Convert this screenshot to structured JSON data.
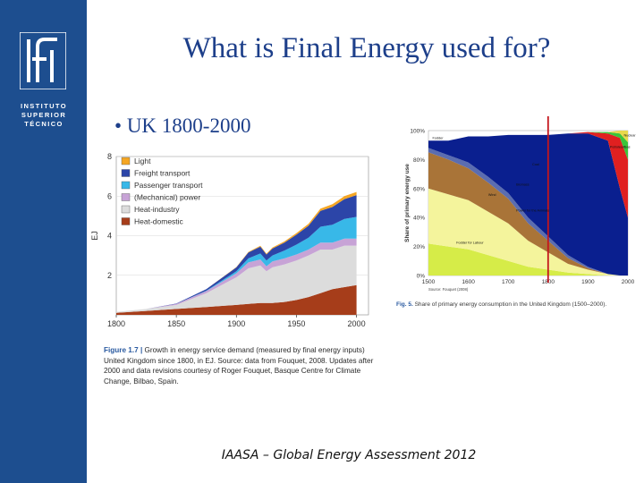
{
  "slide": {
    "title": "What is Final Energy used for?",
    "bullet": "UK 1800-2000",
    "footer": "IAASA – Global Energy Assessment 2012"
  },
  "logo": {
    "lines": [
      "INSTITUTO",
      "SUPERIOR",
      "TÉCNICO"
    ]
  },
  "colors": {
    "sidebar": "#1d4e8f",
    "title": "#1d3f8a",
    "light": "#f5a623",
    "freight": "#2c45a8",
    "passenger": "#38b8e8",
    "mechanical": "#c7a3d6",
    "heat_industry": "#dcdcdc",
    "heat_domestic": "#a63d1a",
    "red_line": "#c4161c"
  },
  "chart_data": [
    {
      "type": "area",
      "stacked": true,
      "ylabel": "EJ",
      "x": [
        1800,
        1825,
        1850,
        1875,
        1900,
        1910,
        1920,
        1925,
        1930,
        1940,
        1950,
        1960,
        1970,
        1980,
        1990,
        2000
      ],
      "xticks": [
        "1800",
        "1850",
        "1900",
        "1950",
        "2000"
      ],
      "yticks": [
        "2",
        "4",
        "6",
        "8"
      ],
      "ylim": [
        0,
        8
      ],
      "legend": {
        "placement": "top-left"
      },
      "series": [
        {
          "name": "Heat-domestic",
          "color": "#a63d1a",
          "values": [
            0.1,
            0.2,
            0.3,
            0.4,
            0.5,
            0.55,
            0.6,
            0.6,
            0.6,
            0.65,
            0.75,
            0.9,
            1.1,
            1.3,
            1.4,
            1.5
          ]
        },
        {
          "name": "Heat-industry",
          "color": "#dcdcdc",
          "values": [
            0.05,
            0.1,
            0.2,
            0.7,
            1.4,
            1.8,
            1.9,
            1.6,
            1.8,
            1.9,
            2.0,
            2.1,
            2.2,
            2.0,
            2.1,
            2.0
          ]
        },
        {
          "name": "(Mechanical) power",
          "color": "#c7a3d6",
          "values": [
            0.0,
            0.0,
            0.05,
            0.1,
            0.2,
            0.3,
            0.3,
            0.25,
            0.3,
            0.3,
            0.3,
            0.3,
            0.35,
            0.35,
            0.35,
            0.35
          ]
        },
        {
          "name": "Passenger transport",
          "color": "#38b8e8",
          "values": [
            0.0,
            0.0,
            0.0,
            0.02,
            0.1,
            0.2,
            0.3,
            0.3,
            0.3,
            0.4,
            0.5,
            0.6,
            0.8,
            0.9,
            1.0,
            1.1
          ]
        },
        {
          "name": "Freight transport",
          "color": "#2c45a8",
          "values": [
            0.0,
            0.0,
            0.02,
            0.08,
            0.2,
            0.3,
            0.35,
            0.3,
            0.35,
            0.4,
            0.5,
            0.6,
            0.8,
            0.9,
            1.0,
            1.1
          ]
        },
        {
          "name": "Light",
          "color": "#f5a623",
          "values": [
            0.0,
            0.0,
            0.0,
            0.0,
            0.02,
            0.03,
            0.04,
            0.04,
            0.05,
            0.06,
            0.08,
            0.1,
            0.12,
            0.14,
            0.15,
            0.16
          ]
        }
      ],
      "caption": {
        "label": "Figure 1.7 |",
        "text": "Growth in energy service demand (measured by final energy inputs) United Kingdom since 1800, in EJ. Source: data from Fouquet, 2008. Updates after 2000 and data revisions courtesy of Roger Fouquet, Basque Centre for Climate Change, Bilbao, Spain."
      }
    },
    {
      "type": "area",
      "stacked": true,
      "ylabel": "Share of primary energy use",
      "x": [
        1500,
        1550,
        1600,
        1650,
        1700,
        1750,
        1800,
        1850,
        1900,
        1950,
        1980,
        2000
      ],
      "xticks": [
        "1500",
        "1600",
        "1700",
        "1800",
        "1900",
        "2000"
      ],
      "yticks": [
        "0%",
        "20%",
        "40%",
        "60%",
        "80%",
        "100%"
      ],
      "ylim": [
        0,
        100
      ],
      "marker_year": 1800,
      "series": [
        {
          "name": "Fodder for Labour",
          "color": "#d6ec48",
          "values": [
            22,
            20,
            18,
            14,
            10,
            6,
            4,
            2,
            1,
            0,
            0,
            0
          ]
        },
        {
          "name": "Power for the Animals",
          "color": "#f4f49c",
          "values": [
            38,
            36,
            34,
            30,
            26,
            18,
            12,
            6,
            3,
            1,
            0,
            0
          ]
        },
        {
          "name": "Biomass",
          "color": "#a97438",
          "values": [
            25,
            24,
            22,
            20,
            17,
            12,
            8,
            4,
            1,
            0,
            0,
            0
          ]
        },
        {
          "name": "Wind",
          "color": "#5b6db0",
          "values": [
            3,
            3,
            4,
            4,
            4,
            4,
            3,
            2,
            1,
            0,
            0,
            0
          ]
        },
        {
          "name": "Coal",
          "color": "#0a1f8f",
          "values": [
            5,
            10,
            18,
            28,
            40,
            57,
            70,
            84,
            92,
            92,
            60,
            40
          ]
        },
        {
          "name": "Petroleum",
          "color": "#e02020",
          "values": [
            0,
            0,
            0,
            0,
            0,
            0,
            0,
            0,
            1,
            5,
            35,
            40
          ]
        },
        {
          "name": "Gas",
          "color": "#3ac43a",
          "values": [
            0,
            0,
            0,
            0,
            0,
            0,
            0,
            0,
            0,
            1,
            3,
            12
          ]
        },
        {
          "name": "Nuclear",
          "color": "#e8d84a",
          "values": [
            0,
            0,
            0,
            0,
            0,
            0,
            0,
            0,
            0,
            0,
            2,
            8
          ]
        }
      ],
      "tags": [
        "Fodder",
        "Wind",
        "Coal",
        "Biomass",
        "Power for the Animals",
        "Fodder for Labour",
        "Petroleum",
        "Gas",
        "Nuclear"
      ],
      "source": "Source: Fouquet (2008)",
      "caption": {
        "label": "Fig. 5.",
        "text": "Share of primary energy consumption in the United Kingdom (1500–2000)."
      }
    }
  ]
}
